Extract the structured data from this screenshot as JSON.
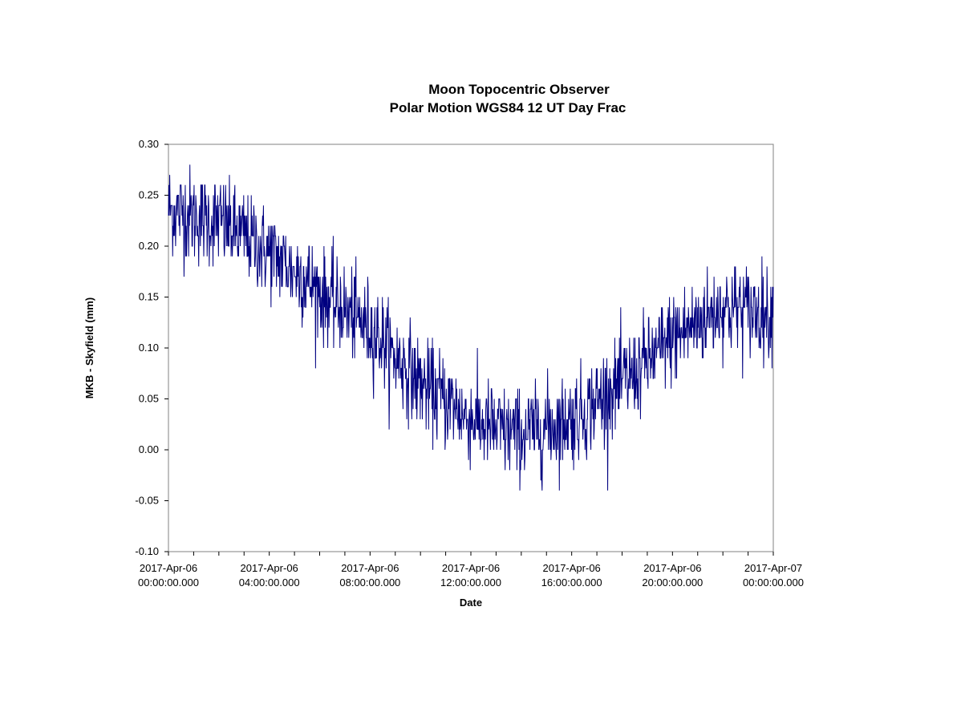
{
  "chart_data": {
    "type": "line",
    "title": "Moon Topocentric Observer",
    "subtitle": "Polar Motion WGS84 12 UT Day Frac",
    "xlabel": "Date",
    "ylabel": "MKB - Skyfield (mm)",
    "ylim": [
      -0.1,
      0.3
    ],
    "y_ticks": [
      "0.30",
      "0.25",
      "0.20",
      "0.15",
      "0.10",
      "0.05",
      "0.00",
      "-0.05",
      "-0.10"
    ],
    "x_range_hours": [
      0,
      24
    ],
    "x_ticks": [
      {
        "date": "2017-Apr-06",
        "time": "00:00:00.000"
      },
      {
        "date": "2017-Apr-06",
        "time": "04:00:00.000"
      },
      {
        "date": "2017-Apr-06",
        "time": "08:00:00.000"
      },
      {
        "date": "2017-Apr-06",
        "time": "12:00:00.000"
      },
      {
        "date": "2017-Apr-06",
        "time": "16:00:00.000"
      },
      {
        "date": "2017-Apr-06",
        "time": "20:00:00.000"
      },
      {
        "date": "2017-Apr-07",
        "time": "00:00:00.000"
      }
    ],
    "grid": false,
    "legend": "none",
    "series": [
      {
        "color": "#000080",
        "x_start": "2017-Apr-06 00:00:00.000",
        "x_end": "2017-Apr-07 00:00:00.000",
        "trend": [
          [
            "2017-Apr-06 00:00:00.000",
            0.235
          ],
          [
            "2017-Apr-06 02:00:00.000",
            0.225
          ],
          [
            "2017-Apr-06 04:00:00.000",
            0.195
          ],
          [
            "2017-Apr-06 06:00:00.000",
            0.155
          ],
          [
            "2017-Apr-06 08:00:00.000",
            0.12
          ],
          [
            "2017-Apr-06 10:00:00.000",
            0.065
          ],
          [
            "2017-Apr-06 12:00:00.000",
            0.03
          ],
          [
            "2017-Apr-06 13:00:00.000",
            0.02
          ],
          [
            "2017-Apr-06 14:00:00.000",
            0.015
          ],
          [
            "2017-Apr-06 16:00:00.000",
            0.03
          ],
          [
            "2017-Apr-06 18:00:00.000",
            0.065
          ],
          [
            "2017-Apr-06 20:00:00.000",
            0.11
          ],
          [
            "2017-Apr-06 22:00:00.000",
            0.14
          ],
          [
            "2017-Apr-07 00:00:00.000",
            0.135
          ]
        ],
        "noise_amplitude": 0.03,
        "quantization": 0.01
      }
    ]
  }
}
